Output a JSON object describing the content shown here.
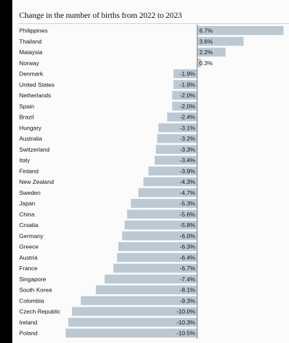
{
  "title": "Change in the number of births from 2022 to 2023",
  "colors": {
    "bar": "#bcc9d3",
    "text": "#111111",
    "zero_line": "#555555",
    "background": "#fbfbfb"
  },
  "chart_data": {
    "type": "bar",
    "orientation": "horizontal",
    "title": "Change in the number of births from 2022 to 2023",
    "unit": "%",
    "categories": [
      "Philippines",
      "Thailand",
      "Malaysia",
      "Norway",
      "Denmark",
      "United States",
      "Netherlands",
      "Spain",
      "Brazil",
      "Hungary",
      "Australia",
      "Switzerland",
      "Italy",
      "Finland",
      "New Zealand",
      "Sweden",
      "Japan",
      "China",
      "Croatia",
      "Germany",
      "Greece",
      "Austria",
      "France",
      "Singapore",
      "South Korea",
      "Colombia",
      "Czech Republic",
      "Ireland",
      "Poland"
    ],
    "values": [
      6.7,
      3.6,
      2.2,
      0.3,
      -1.9,
      -1.9,
      -2.0,
      -2.0,
      -2.4,
      -3.1,
      -3.2,
      -3.3,
      -3.4,
      -3.9,
      -4.3,
      -4.7,
      -5.3,
      -5.6,
      -5.8,
      -6.0,
      -6.3,
      -6.4,
      -6.7,
      -7.4,
      -8.1,
      -9.3,
      -10.0,
      -10.3,
      -10.5
    ],
    "value_labels": [
      "6.7%",
      "3.6%",
      "2.2%",
      "0.3%",
      "-1.9%",
      "-1.9%",
      "-2.0%",
      "-2.0%",
      "-2.4%",
      "-3.1%",
      "-3.2%",
      "-3.3%",
      "-3.4%",
      "-3.9%",
      "-4.3%",
      "-4.7%",
      "-5.3%",
      "-5.6%",
      "-5.8%",
      "-6.0%",
      "-6.3%",
      "-6.4%",
      "-6.7%",
      "-7.4%",
      "-8.1%",
      "-9.3%",
      "-10.0%",
      "-10.3%",
      "-10.5%"
    ],
    "xlim": [
      -10.5,
      6.7
    ],
    "grid": false,
    "legend": "none"
  }
}
